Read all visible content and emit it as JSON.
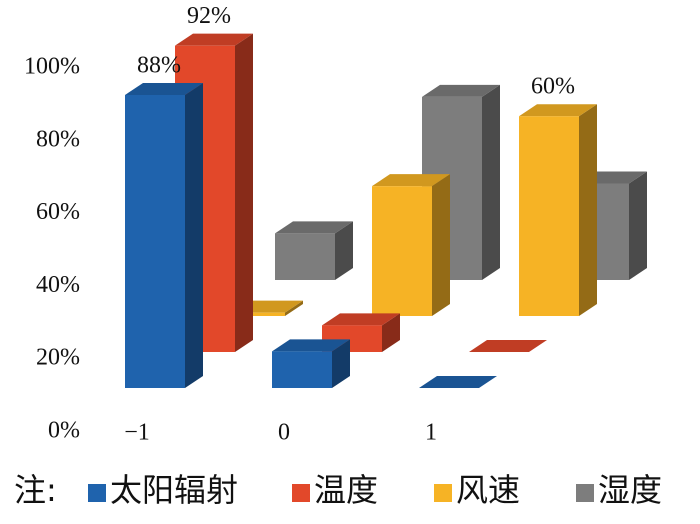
{
  "chart_data": {
    "type": "bar3d",
    "categories": [
      "−1",
      "0",
      "1"
    ],
    "series": [
      {
        "name": "太阳辐射",
        "color": "#1f63ad",
        "values": [
          88,
          11,
          0
        ],
        "value_labels": [
          "88%",
          null,
          null
        ]
      },
      {
        "name": "温度",
        "color": "#e2482a",
        "values": [
          92,
          8,
          0
        ],
        "value_labels": [
          "92%",
          null,
          null
        ]
      },
      {
        "name": "风速",
        "color": "#f6b325",
        "values": [
          1,
          39,
          60
        ],
        "value_labels": [
          null,
          null,
          "60%"
        ]
      },
      {
        "name": "湿度",
        "color": "#7d7d7d",
        "values": [
          14,
          55,
          29
        ],
        "value_labels": [
          null,
          null,
          null
        ]
      }
    ],
    "ylim": [
      0,
      100
    ],
    "yticks": [
      {
        "value": 0,
        "label": "0%"
      },
      {
        "value": 20,
        "label": "20%"
      },
      {
        "value": 40,
        "label": "40%"
      },
      {
        "value": 60,
        "label": "60%"
      },
      {
        "value": 80,
        "label": "80%"
      },
      {
        "value": 100,
        "label": "100%"
      }
    ],
    "legend_title": "注:"
  }
}
